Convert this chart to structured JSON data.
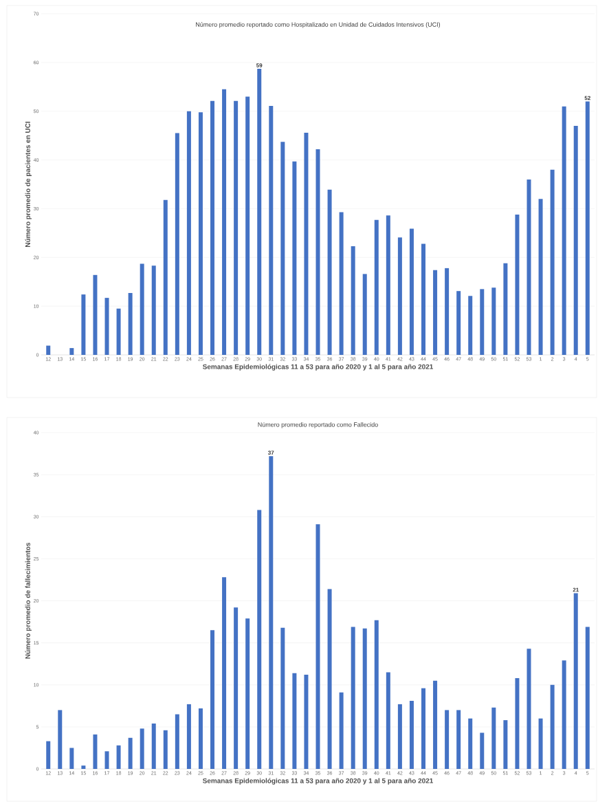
{
  "chart_data": [
    {
      "type": "bar",
      "title": "Número promedio reportado como Hospitalizado en Unidad de Cuidados Intensivos (UCI)",
      "xlabel": "Semanas Epidemiológicas 11 a 53 para año 2020 y 1 al 5 para año 2021",
      "ylabel": "Número promedio de pacientes en UCI",
      "categories": [
        "12",
        "13",
        "14",
        "15",
        "16",
        "17",
        "18",
        "19",
        "20",
        "21",
        "22",
        "23",
        "24",
        "25",
        "26",
        "27",
        "28",
        "29",
        "30",
        "31",
        "32",
        "33",
        "34",
        "35",
        "36",
        "37",
        "38",
        "39",
        "40",
        "41",
        "42",
        "43",
        "44",
        "45",
        "46",
        "47",
        "48",
        "49",
        "50",
        "51",
        "52",
        "53",
        "1",
        "2",
        "3",
        "4",
        "5"
      ],
      "values": [
        1.9,
        0,
        1.4,
        12.4,
        16.4,
        11.7,
        9.5,
        12.7,
        18.7,
        18.3,
        31.8,
        45.5,
        50,
        49.8,
        52.1,
        54.5,
        52.1,
        53,
        58.7,
        51.1,
        43.7,
        39.7,
        45.6,
        42.2,
        33.9,
        29.3,
        22.3,
        16.6,
        27.7,
        28.6,
        24.1,
        25.9,
        22.8,
        17.4,
        17.8,
        13.1,
        12.1,
        13.5,
        13.8,
        18.8,
        28.8,
        36,
        32,
        38,
        51,
        47,
        52
      ],
      "value_labels": [
        null,
        null,
        null,
        null,
        null,
        null,
        null,
        null,
        null,
        null,
        null,
        null,
        null,
        null,
        null,
        null,
        null,
        null,
        "59",
        null,
        null,
        null,
        null,
        null,
        null,
        null,
        null,
        null,
        null,
        null,
        null,
        null,
        null,
        null,
        null,
        null,
        null,
        null,
        null,
        null,
        null,
        null,
        null,
        null,
        null,
        null,
        "52"
      ],
      "color": "#4472c4",
      "ylim": [
        0,
        70
      ],
      "yticks": [
        0,
        10,
        20,
        30,
        40,
        50,
        60,
        70
      ],
      "grid": "y"
    },
    {
      "type": "bar",
      "title": "Número promedio reportado como Fallecido",
      "xlabel": "Semanas Epidemiológicas 11 a 53 para año 2020 y 1 al 5 para año 2021",
      "ylabel": "Número promedio de fallecimientos",
      "categories": [
        "12",
        "13",
        "14",
        "15",
        "16",
        "17",
        "18",
        "19",
        "20",
        "21",
        "22",
        "23",
        "24",
        "25",
        "26",
        "27",
        "28",
        "29",
        "30",
        "31",
        "32",
        "33",
        "34",
        "35",
        "36",
        "37",
        "38",
        "39",
        "40",
        "41",
        "42",
        "43",
        "44",
        "45",
        "46",
        "47",
        "48",
        "49",
        "50",
        "51",
        "52",
        "53",
        "1",
        "2",
        "3",
        "4",
        "5"
      ],
      "values": [
        3.3,
        7.0,
        2.5,
        0.4,
        4.1,
        2.1,
        2.8,
        3.7,
        4.8,
        5.4,
        4.6,
        6.5,
        7.7,
        7.2,
        16.5,
        22.8,
        19.2,
        17.9,
        30.8,
        37.2,
        16.8,
        11.4,
        11.2,
        29.1,
        21.4,
        9.1,
        16.9,
        16.7,
        17.7,
        11.5,
        7.7,
        8.1,
        9.6,
        10.5,
        7.0,
        7.0,
        6.0,
        4.3,
        7.3,
        5.8,
        10.8,
        14.3,
        6.0,
        10.0,
        12.9,
        20.9,
        16.9
      ],
      "value_labels": [
        null,
        null,
        null,
        null,
        null,
        null,
        null,
        null,
        null,
        null,
        null,
        null,
        null,
        null,
        null,
        null,
        null,
        null,
        null,
        "37",
        null,
        null,
        null,
        null,
        null,
        null,
        null,
        null,
        null,
        null,
        null,
        null,
        null,
        null,
        null,
        null,
        null,
        null,
        null,
        null,
        null,
        null,
        null,
        null,
        null,
        "21",
        null
      ],
      "color": "#4472c4",
      "ylim": [
        0,
        40
      ],
      "yticks": [
        0,
        5,
        10,
        15,
        20,
        25,
        30,
        35,
        40
      ],
      "grid": "y"
    }
  ]
}
